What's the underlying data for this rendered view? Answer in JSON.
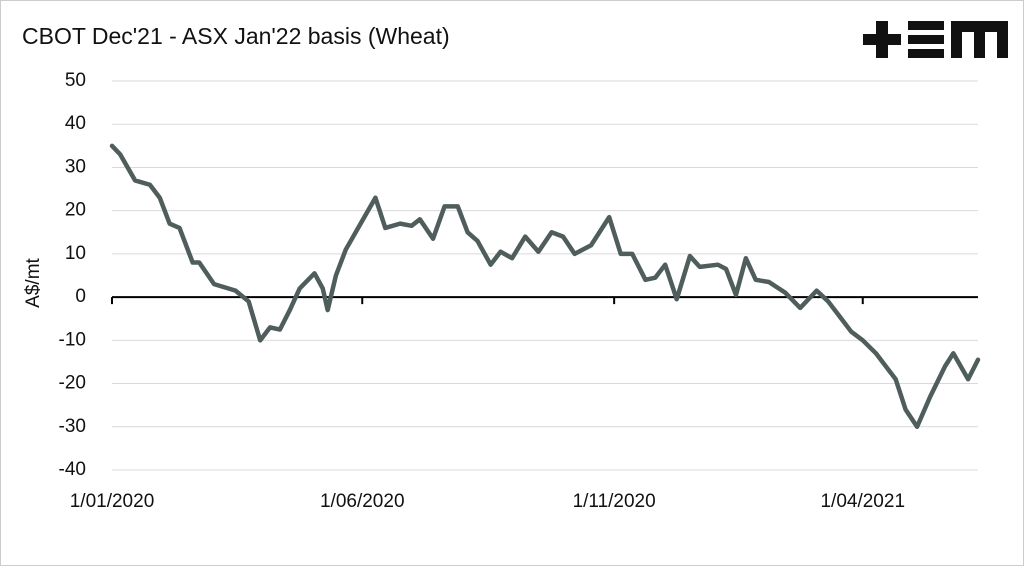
{
  "chart_data": {
    "type": "line",
    "title": "CBOT Dec'21 - ASX Jan'22 basis (Wheat)",
    "y_label": "A$/mt",
    "x": [
      "2020-01-01",
      "2020-01-06",
      "2020-01-15",
      "2020-01-24",
      "2020-01-30",
      "2020-02-05",
      "2020-02-11",
      "2020-02-19",
      "2020-02-23",
      "2020-03-03",
      "2020-03-16",
      "2020-03-24",
      "2020-03-31",
      "2020-04-06",
      "2020-04-12",
      "2020-04-18",
      "2020-04-24",
      "2020-05-03",
      "2020-05-08",
      "2020-05-11",
      "2020-05-16",
      "2020-05-22",
      "2020-05-31",
      "2020-06-09",
      "2020-06-15",
      "2020-06-24",
      "2020-07-01",
      "2020-07-06",
      "2020-07-14",
      "2020-07-21",
      "2020-07-29",
      "2020-08-04",
      "2020-08-10",
      "2020-08-18",
      "2020-08-24",
      "2020-08-31",
      "2020-09-08",
      "2020-09-16",
      "2020-09-24",
      "2020-10-01",
      "2020-10-08",
      "2020-10-18",
      "2020-10-29",
      "2020-11-05",
      "2020-11-12",
      "2020-11-20",
      "2020-11-26",
      "2020-12-02",
      "2020-12-09",
      "2020-12-17",
      "2020-12-23",
      "2021-01-03",
      "2021-01-08",
      "2021-01-14",
      "2021-01-20",
      "2021-01-26",
      "2021-02-03",
      "2021-02-13",
      "2021-02-22",
      "2021-03-04",
      "2021-03-11",
      "2021-03-17",
      "2021-03-25",
      "2021-04-01",
      "2021-04-09",
      "2021-04-21",
      "2021-04-27",
      "2021-05-04",
      "2021-05-12",
      "2021-05-21",
      "2021-05-26",
      "2021-06-04",
      "2021-06-10"
    ],
    "series": [
      {
        "name": "basis",
        "color": "#4f5e5c",
        "values": [
          35,
          33,
          27,
          26,
          23,
          17,
          16,
          8,
          8,
          3,
          1.5,
          -1,
          -10,
          -7,
          -7.5,
          -3,
          2,
          5.5,
          2,
          -3,
          5,
          11,
          17,
          23,
          16,
          17,
          16.5,
          18,
          13.5,
          21,
          21,
          15,
          13,
          7.5,
          10.5,
          9,
          14,
          10.5,
          15,
          14,
          10,
          12,
          18.5,
          10,
          10,
          4,
          4.5,
          7.5,
          -0.5,
          9.5,
          7,
          7.5,
          6.5,
          0.5,
          9,
          4,
          3.5,
          1,
          -2.5,
          1.5,
          -1,
          -4,
          -8,
          -10,
          -13,
          -19,
          -26,
          -30,
          -23,
          -16,
          -13,
          -19,
          -14.5
        ]
      }
    ],
    "xlim": [
      "2020-01-01",
      "2021-06-10"
    ],
    "xticks": [
      {
        "value": "2020-01-01",
        "label": "1/01/2020"
      },
      {
        "value": "2020-06-01",
        "label": "1/06/2020"
      },
      {
        "value": "2020-11-01",
        "label": "1/11/2020"
      },
      {
        "value": "2021-04-01",
        "label": "1/04/2021"
      }
    ],
    "ylim": [
      -40,
      50
    ],
    "yticks": [
      -40,
      -30,
      -20,
      -10,
      0,
      10,
      20,
      30,
      40,
      50
    ],
    "grid": true
  }
}
